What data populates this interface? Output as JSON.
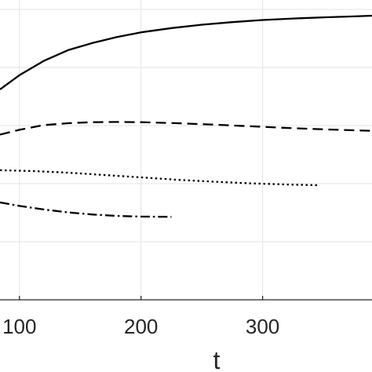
{
  "chart_data": {
    "type": "line",
    "title": "",
    "xlabel": "t",
    "ylabel": "",
    "xlim": [
      84,
      390
    ],
    "ylim": [
      0,
      1
    ],
    "grid": true,
    "x_ticks": [
      100,
      200,
      300
    ],
    "x_tick_labels": [
      "100",
      "200",
      "300"
    ],
    "series": [
      {
        "line_style": "solid",
        "points": [
          [
            84,
            0.69
          ],
          [
            100,
            0.75
          ],
          [
            120,
            0.81
          ],
          [
            140,
            0.855
          ],
          [
            160,
            0.885
          ],
          [
            180,
            0.91
          ],
          [
            200,
            0.93
          ],
          [
            225,
            0.948
          ],
          [
            250,
            0.962
          ],
          [
            275,
            0.973
          ],
          [
            300,
            0.982
          ],
          [
            325,
            0.988
          ],
          [
            350,
            0.993
          ],
          [
            375,
            0.997
          ],
          [
            390,
            1.0
          ]
        ]
      },
      {
        "line_style": "dashed",
        "points": [
          [
            84,
            0.5
          ],
          [
            100,
            0.52
          ],
          [
            120,
            0.54
          ],
          [
            140,
            0.548
          ],
          [
            160,
            0.552
          ],
          [
            180,
            0.553
          ],
          [
            200,
            0.552
          ],
          [
            230,
            0.548
          ],
          [
            260,
            0.542
          ],
          [
            290,
            0.535
          ],
          [
            320,
            0.528
          ],
          [
            350,
            0.522
          ],
          [
            375,
            0.518
          ],
          [
            390,
            0.516
          ]
        ]
      },
      {
        "line_style": "dotted",
        "points": [
          [
            84,
            0.35
          ],
          [
            110,
            0.347
          ],
          [
            140,
            0.34
          ],
          [
            170,
            0.33
          ],
          [
            200,
            0.32
          ],
          [
            230,
            0.31
          ],
          [
            260,
            0.302
          ],
          [
            290,
            0.295
          ],
          [
            320,
            0.29
          ],
          [
            345,
            0.287
          ]
        ]
      },
      {
        "line_style": "dashdot",
        "points": [
          [
            84,
            0.215
          ],
          [
            100,
            0.2
          ],
          [
            120,
            0.185
          ],
          [
            140,
            0.173
          ],
          [
            160,
            0.164
          ],
          [
            180,
            0.158
          ],
          [
            200,
            0.155
          ],
          [
            225,
            0.154
          ]
        ]
      }
    ]
  }
}
